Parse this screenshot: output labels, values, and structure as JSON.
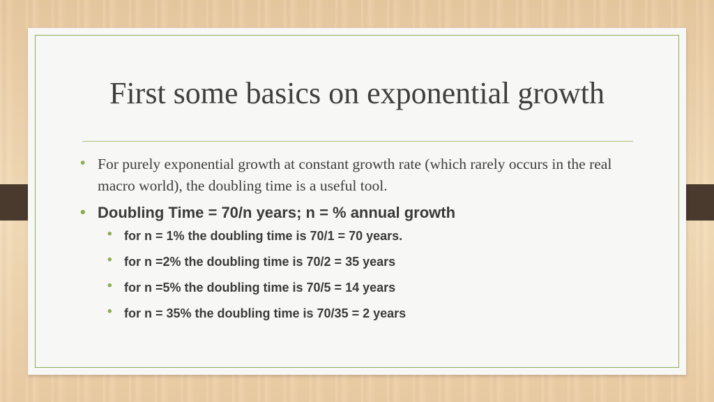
{
  "slide": {
    "title": "First some basics on exponential growth",
    "bullets": [
      {
        "text": "For purely exponential growth at constant growth rate (which rarely occurs in the real macro world), the doubling time is a useful tool."
      },
      {
        "text": "Doubling Time = 70/n years; n = % annual growth",
        "sub_bullets": [
          "for n = 1% the doubling time is 70/1 = 70 years.",
          "for n =2% the doubling time is 70/2 = 35 years",
          "for n =5% the doubling time is 70/5 = 14 years",
          "for n = 35% the doubling time is 70/35 = 2 years"
        ]
      }
    ],
    "bullet_glyph": "•"
  },
  "colors": {
    "accent_green": "#8cae4e",
    "frame_green": "#8fae57",
    "text": "#3d3d3d",
    "tab_brown": "#4a3a2e",
    "background_wood": "#efd4ae"
  }
}
